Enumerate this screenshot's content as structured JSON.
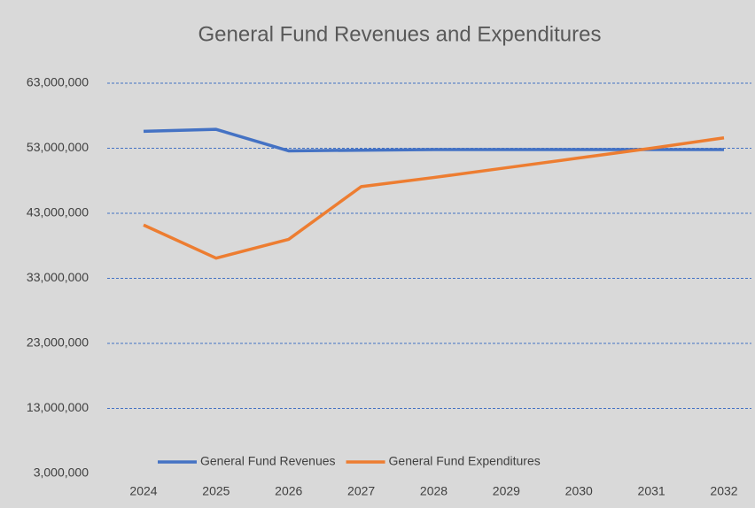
{
  "chart_data": {
    "type": "line",
    "title": "General Fund Revenues and Expenditures",
    "categories": [
      "2024",
      "2025",
      "2026",
      "2027",
      "2028",
      "2029",
      "2030",
      "2031",
      "2032"
    ],
    "series": [
      {
        "name": "General Fund Revenues",
        "color": "#4472c4",
        "values": [
          55600000,
          55900000,
          52600000,
          52700000,
          52800000,
          52800000,
          52800000,
          52800000,
          52800000
        ]
      },
      {
        "name": "General Fund Expenditures",
        "color": "#ed7d31",
        "values": [
          41200000,
          36100000,
          39000000,
          47100000,
          48500000,
          50000000,
          51500000,
          53000000,
          54600000
        ]
      }
    ],
    "ylim": [
      3000000,
      63000000
    ],
    "yticks": [
      {
        "value": 3000000,
        "label": "3,000,000"
      },
      {
        "value": 13000000,
        "label": "13,000,000"
      },
      {
        "value": 23000000,
        "label": "23,000,000"
      },
      {
        "value": 33000000,
        "label": "33,000,000"
      },
      {
        "value": 43000000,
        "label": "43,000,000"
      },
      {
        "value": 53000000,
        "label": "53,000,000"
      },
      {
        "value": 63000000,
        "label": "63,000,000"
      }
    ],
    "grid": true,
    "grid_color": "#4472c4",
    "legend": "bottom"
  }
}
